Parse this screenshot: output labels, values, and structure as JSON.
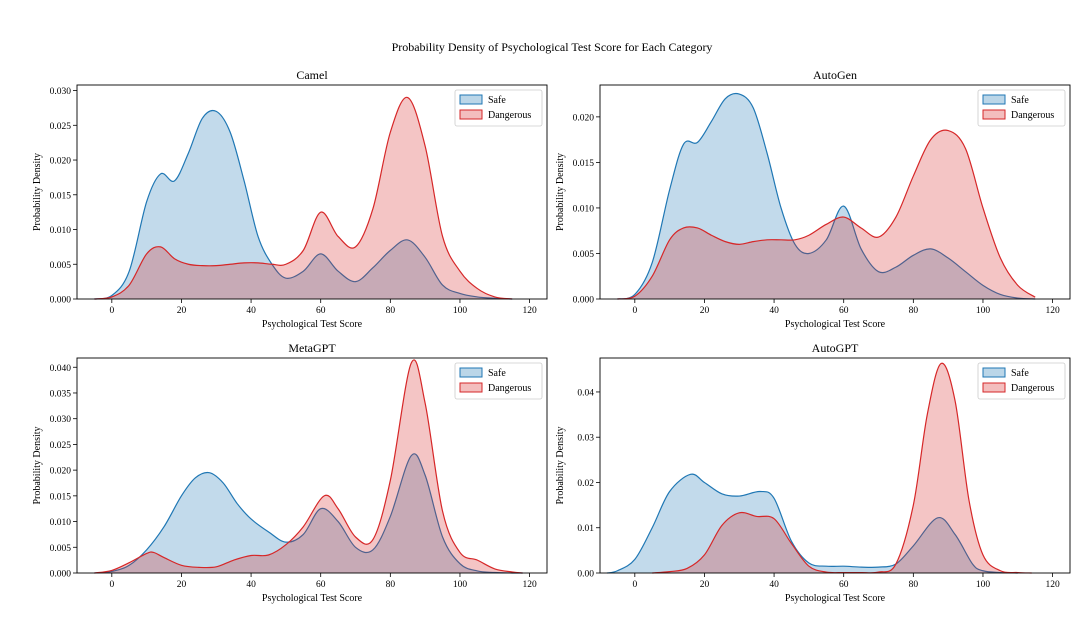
{
  "figure": {
    "title": "Probability Density of Psychological Test Score for Each Category"
  },
  "colors": {
    "safe": "#1f77b4",
    "dangerous": "#d62728"
  },
  "chart_data": [
    {
      "type": "area",
      "title": "Camel",
      "xlabel": "Psychological Test Score",
      "ylabel": "Probability Density",
      "xlim": [
        -10,
        125
      ],
      "ylim": [
        0,
        0.0308
      ],
      "xticks": [
        0,
        20,
        40,
        60,
        80,
        100,
        120
      ],
      "yticks": [
        0.0,
        0.005,
        0.01,
        0.015,
        0.02,
        0.025,
        0.03
      ],
      "ytick_labels": [
        "0.000",
        "0.005",
        "0.010",
        "0.015",
        "0.020",
        "0.025",
        "0.030"
      ],
      "legend": "top-right",
      "grid": false,
      "series": [
        {
          "name": "Safe",
          "color": "#1f77b4",
          "x": [
            -5,
            0,
            5,
            10,
            14,
            18,
            22,
            26,
            30,
            34,
            38,
            42,
            46,
            50,
            55,
            60,
            65,
            70,
            75,
            80,
            85,
            90,
            95,
            100,
            105,
            110,
            115
          ],
          "y": [
            0.0,
            0.0005,
            0.004,
            0.014,
            0.018,
            0.017,
            0.021,
            0.026,
            0.027,
            0.024,
            0.017,
            0.009,
            0.005,
            0.003,
            0.004,
            0.0065,
            0.004,
            0.0025,
            0.0045,
            0.007,
            0.0085,
            0.006,
            0.002,
            0.0008,
            0.0003,
            0.0001,
            0.0
          ]
        },
        {
          "name": "Dangerous",
          "color": "#d62728",
          "x": [
            -5,
            0,
            5,
            10,
            14,
            18,
            22,
            26,
            30,
            34,
            38,
            42,
            46,
            50,
            55,
            60,
            65,
            70,
            75,
            80,
            85,
            90,
            95,
            100,
            105,
            110,
            115
          ],
          "y": [
            0.0,
            0.0003,
            0.002,
            0.0065,
            0.0075,
            0.0058,
            0.005,
            0.0048,
            0.0048,
            0.005,
            0.0052,
            0.0052,
            0.005,
            0.005,
            0.007,
            0.0125,
            0.009,
            0.0075,
            0.013,
            0.024,
            0.029,
            0.022,
            0.009,
            0.004,
            0.0015,
            0.0003,
            0.0
          ]
        }
      ]
    },
    {
      "type": "area",
      "title": "AutoGen",
      "xlabel": "Psychological Test Score",
      "ylabel": "Probability Density",
      "xlim": [
        -10,
        125
      ],
      "ylim": [
        0,
        0.0235
      ],
      "xticks": [
        0,
        20,
        40,
        60,
        80,
        100,
        120
      ],
      "yticks": [
        0.0,
        0.005,
        0.01,
        0.015,
        0.02
      ],
      "ytick_labels": [
        "0.000",
        "0.005",
        "0.010",
        "0.015",
        "0.020"
      ],
      "legend": "top-right",
      "grid": false,
      "series": [
        {
          "name": "Safe",
          "color": "#1f77b4",
          "x": [
            -5,
            0,
            5,
            10,
            14,
            18,
            22,
            26,
            30,
            34,
            38,
            42,
            46,
            50,
            55,
            60,
            65,
            70,
            75,
            80,
            85,
            90,
            95,
            100,
            105,
            110,
            115
          ],
          "y": [
            0.0,
            0.0005,
            0.004,
            0.012,
            0.017,
            0.0172,
            0.0195,
            0.022,
            0.0225,
            0.021,
            0.016,
            0.01,
            0.006,
            0.005,
            0.0065,
            0.0102,
            0.0055,
            0.003,
            0.0035,
            0.0048,
            0.0055,
            0.0045,
            0.003,
            0.0015,
            0.0005,
            0.0001,
            0.0
          ]
        },
        {
          "name": "Dangerous",
          "color": "#d62728",
          "x": [
            -5,
            0,
            5,
            10,
            14,
            18,
            22,
            26,
            30,
            34,
            38,
            42,
            46,
            50,
            55,
            60,
            65,
            70,
            75,
            80,
            85,
            90,
            95,
            100,
            105,
            110,
            115
          ],
          "y": [
            0.0,
            0.0003,
            0.0025,
            0.0065,
            0.0078,
            0.0078,
            0.007,
            0.0063,
            0.006,
            0.0063,
            0.0065,
            0.0065,
            0.0065,
            0.007,
            0.0082,
            0.009,
            0.0078,
            0.0068,
            0.009,
            0.0135,
            0.0175,
            0.0185,
            0.0165,
            0.01,
            0.0045,
            0.0015,
            0.0002
          ]
        }
      ]
    },
    {
      "type": "area",
      "title": "MetaGPT",
      "xlabel": "Psychological Test Score",
      "ylabel": "Probability Density",
      "xlim": [
        -10,
        125
      ],
      "ylim": [
        0,
        0.0418
      ],
      "xticks": [
        0,
        20,
        40,
        60,
        80,
        100,
        120
      ],
      "yticks": [
        0.0,
        0.005,
        0.01,
        0.015,
        0.02,
        0.025,
        0.03,
        0.035,
        0.04
      ],
      "ytick_labels": [
        "0.000",
        "0.005",
        "0.010",
        "0.015",
        "0.020",
        "0.025",
        "0.030",
        "0.035",
        "0.040"
      ],
      "legend": "top-right",
      "grid": false,
      "series": [
        {
          "name": "Safe",
          "color": "#1f77b4",
          "x": [
            -5,
            0,
            5,
            10,
            15,
            20,
            24,
            28,
            32,
            36,
            40,
            45,
            50,
            55,
            60,
            65,
            70,
            75,
            80,
            86,
            90,
            95,
            100,
            105,
            110,
            115,
            118
          ],
          "y": [
            0.0,
            0.0003,
            0.0015,
            0.0045,
            0.009,
            0.015,
            0.0185,
            0.0195,
            0.0175,
            0.0135,
            0.0105,
            0.008,
            0.006,
            0.0075,
            0.0125,
            0.01,
            0.005,
            0.0045,
            0.011,
            0.0228,
            0.019,
            0.007,
            0.0018,
            0.0004,
            0.0001,
            0.0,
            0.0
          ]
        },
        {
          "name": "Dangerous",
          "color": "#d62728",
          "x": [
            -5,
            0,
            5,
            10,
            12,
            15,
            20,
            25,
            30,
            35,
            40,
            45,
            50,
            55,
            61,
            65,
            70,
            75,
            80,
            86,
            90,
            95,
            100,
            105,
            110,
            115,
            118
          ],
          "y": [
            0.0,
            0.0005,
            0.002,
            0.0038,
            0.004,
            0.003,
            0.0015,
            0.0011,
            0.0012,
            0.0025,
            0.0034,
            0.0035,
            0.0055,
            0.009,
            0.015,
            0.0125,
            0.007,
            0.0065,
            0.018,
            0.0408,
            0.033,
            0.012,
            0.004,
            0.0025,
            0.0008,
            0.0002,
            0.0
          ]
        }
      ]
    },
    {
      "type": "area",
      "title": "AutoGPT",
      "xlabel": "Psychological Test Score",
      "ylabel": "Probability Density",
      "xlim": [
        -10,
        125
      ],
      "ylim": [
        0,
        0.0475
      ],
      "xticks": [
        0,
        20,
        40,
        60,
        80,
        100,
        120
      ],
      "yticks": [
        0.0,
        0.01,
        0.02,
        0.03,
        0.04
      ],
      "ytick_labels": [
        "0.00",
        "0.01",
        "0.02",
        "0.03",
        "0.04"
      ],
      "legend": "top-right",
      "grid": false,
      "series": [
        {
          "name": "Safe",
          "color": "#1f77b4",
          "x": [
            -8,
            -5,
            0,
            5,
            10,
            16,
            20,
            25,
            30,
            36,
            40,
            45,
            50,
            55,
            60,
            65,
            70,
            75,
            80,
            87,
            92,
            97,
            100,
            105,
            110
          ],
          "y": [
            0.0,
            0.0005,
            0.003,
            0.01,
            0.018,
            0.0218,
            0.02,
            0.0175,
            0.017,
            0.018,
            0.0165,
            0.007,
            0.0022,
            0.0015,
            0.0015,
            0.0013,
            0.0013,
            0.002,
            0.006,
            0.0122,
            0.0085,
            0.002,
            0.0005,
            0.0001,
            0.0
          ]
        },
        {
          "name": "Dangerous",
          "color": "#d62728",
          "x": [
            5,
            10,
            15,
            20,
            25,
            30,
            35,
            40,
            45,
            50,
            55,
            60,
            65,
            70,
            75,
            80,
            84,
            88,
            92,
            96,
            100,
            105,
            110,
            114
          ],
          "y": [
            0.0,
            0.0003,
            0.001,
            0.004,
            0.0105,
            0.0133,
            0.0125,
            0.012,
            0.0065,
            0.0015,
            0.0002,
            0.0001,
            0.0001,
            0.0002,
            0.002,
            0.015,
            0.035,
            0.0463,
            0.038,
            0.016,
            0.004,
            0.0005,
            0.0001,
            0.0
          ]
        }
      ]
    }
  ]
}
